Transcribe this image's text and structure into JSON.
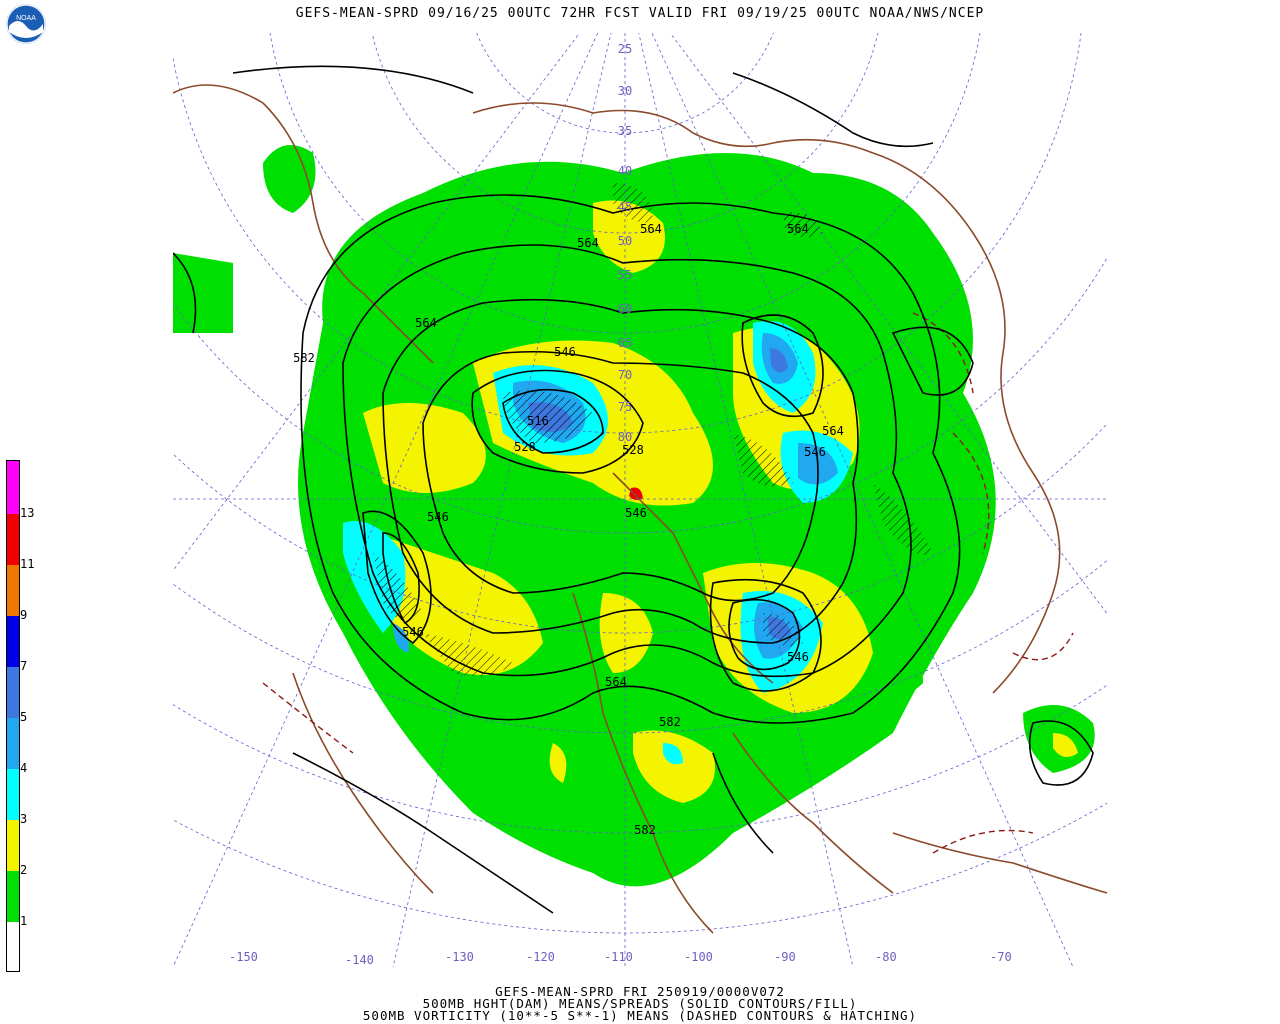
{
  "title": "GEFS-MEAN-SPRD 09/16/25 00UTC 72HR FCST VALID FRI 09/19/25 00UTC NOAA/NWS/NCEP",
  "logo_text": "NOAA",
  "footer": {
    "line1": "GEFS-MEAN-SPRD FRI 250919/0000V072",
    "line2": "500MB HGHT(DAM) MEANS/SPREADS (SOLID CONTOURS/FILL)",
    "line3": "500MB VORTICITY (10**-5 S**-1) MEANS (DASHED CONTOURS & HATCHING)"
  },
  "colorbar": {
    "labels": [
      "1",
      "2",
      "3",
      "4",
      "5",
      "7",
      "9",
      "11",
      "13"
    ],
    "colors": [
      "#ffffff",
      "#00e000",
      "#f4f400",
      "#00ffff",
      "#20a8f0",
      "#3c78e0",
      "#0000e8",
      "#f07800",
      "#f00000",
      "#ff00ff"
    ]
  },
  "longitude_labels": [
    "-150",
    "-140",
    "-130",
    "-120",
    "-110",
    "-100",
    "-90",
    "-80",
    "-70"
  ],
  "latitude_labels": [
    "25",
    "30",
    "35",
    "40",
    "45",
    "50",
    "55",
    "60",
    "65",
    "70",
    "75",
    "80"
  ],
  "contour_labels": [
    "564",
    "564",
    "564",
    "564",
    "582",
    "564",
    "546",
    "516",
    "528",
    "528",
    "546",
    "546",
    "564",
    "546",
    "546",
    "546",
    "564",
    "546",
    "582",
    "582"
  ]
}
